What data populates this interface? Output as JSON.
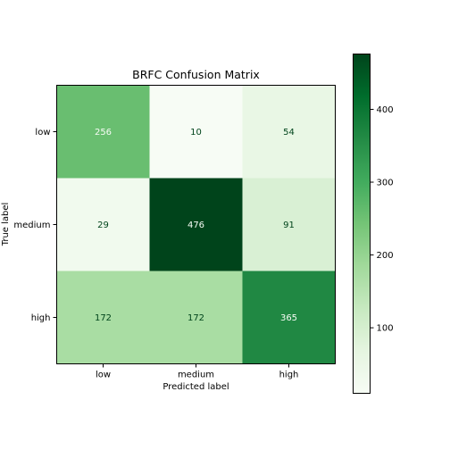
{
  "chart_data": {
    "type": "heatmap",
    "title": "BRFC Confusion Matrix",
    "xlabel": "Predicted label",
    "ylabel": "True label",
    "x_categories": [
      "low",
      "medium",
      "high"
    ],
    "y_categories": [
      "low",
      "medium",
      "high"
    ],
    "values": [
      [
        256,
        10,
        54
      ],
      [
        29,
        476,
        91
      ],
      [
        172,
        172,
        365
      ]
    ],
    "colormap": "Greens",
    "color_range": [
      10,
      476
    ],
    "colorbar_ticks": [
      "100",
      "200",
      "300",
      "400"
    ],
    "colorbar_tick_values": [
      100,
      200,
      300,
      400
    ],
    "grid": false
  }
}
